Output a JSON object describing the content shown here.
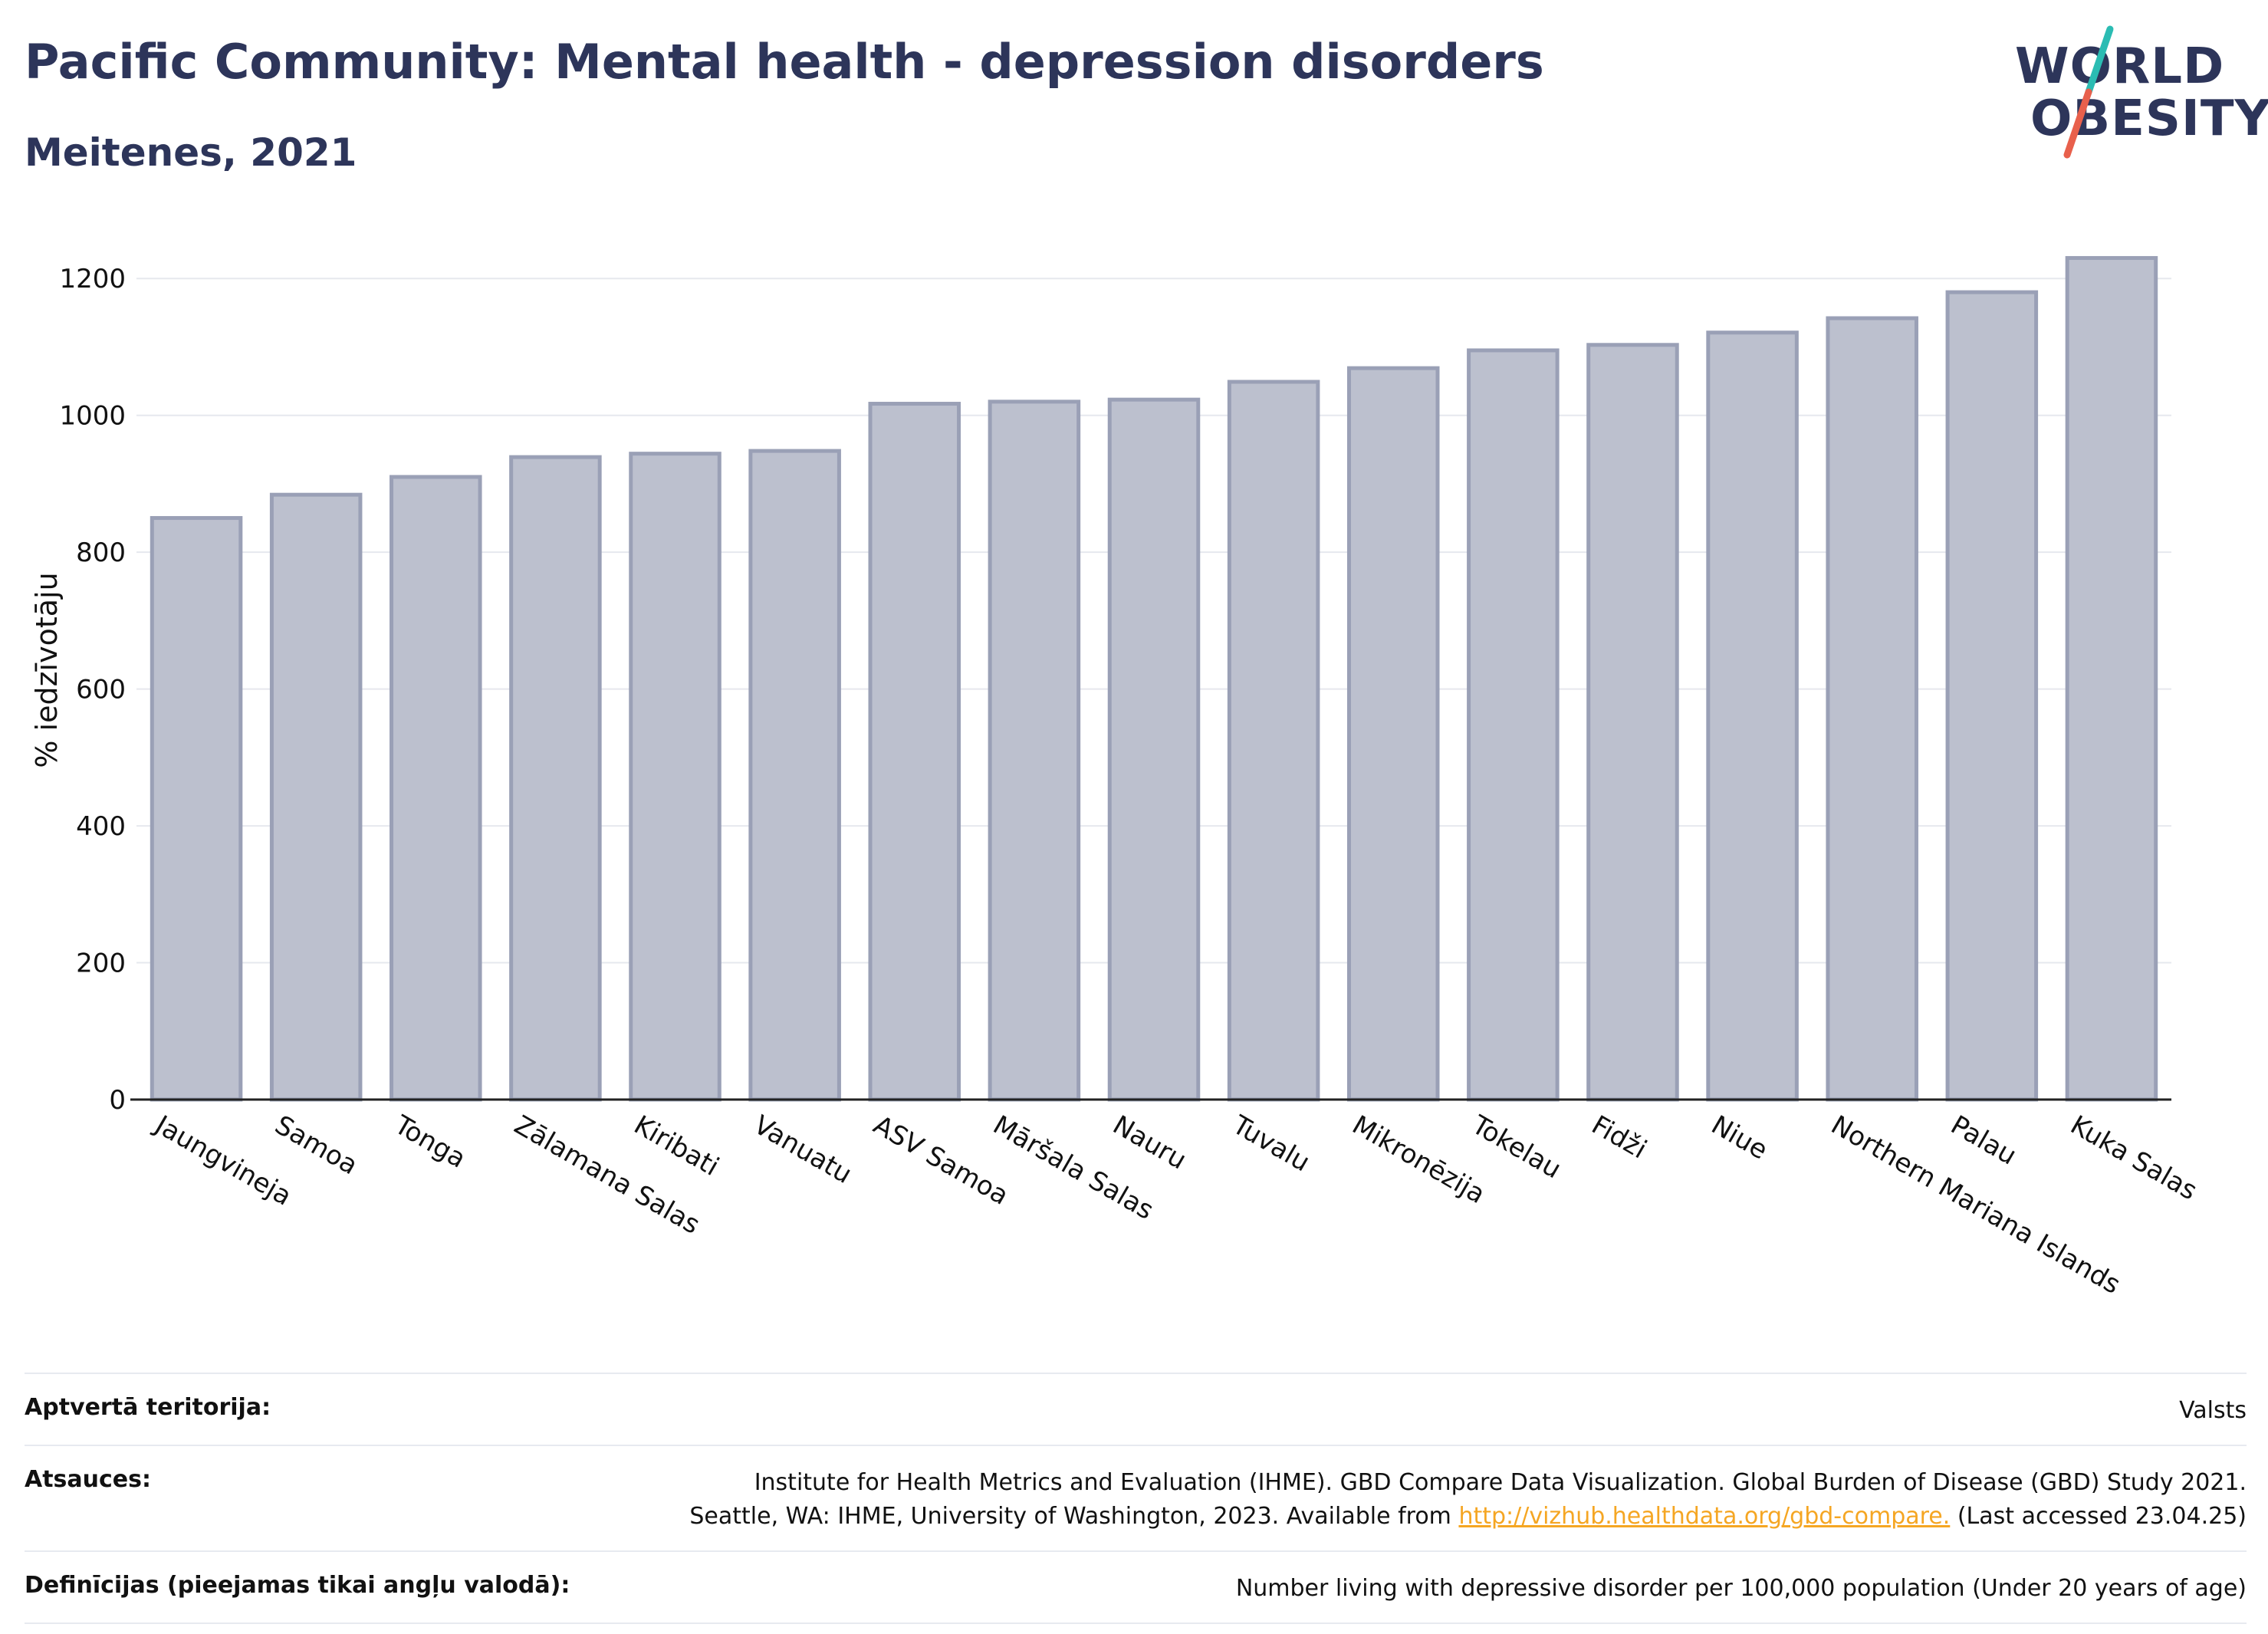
{
  "header": {
    "title": "Pacific Community: Mental health - depression disorders",
    "subtitle": "Meitenes, 2021"
  },
  "logo": {
    "line1": "WORLD",
    "line2": "OBESITY",
    "accent_colors": [
      "#2bbcb3",
      "#e8604c"
    ]
  },
  "chart_data": {
    "type": "bar",
    "categories": [
      "Jaungvineja",
      "Samoa",
      "Tonga",
      "Zālamana Salas",
      "Kiribati",
      "Vanuatu",
      "ASV Samoa",
      "Māršala Salas",
      "Nauru",
      "Tuvalu",
      "Mikronēzija",
      "Tokelau",
      "Fidži",
      "Niue",
      "Northern Mariana Islands",
      "Palau",
      "Kuka Salas"
    ],
    "values": [
      850,
      884,
      910,
      939,
      944,
      948,
      1017,
      1020,
      1023,
      1049,
      1069,
      1095,
      1103,
      1121,
      1142,
      1180,
      1230
    ],
    "ylabel": "% iedzīvotāju",
    "xlabel": "",
    "ylim": [
      0,
      1300
    ],
    "yticks": [
      0,
      200,
      400,
      600,
      800,
      1000,
      1200
    ],
    "grid": true,
    "bar_fill": "#bcc0ce",
    "bar_stroke": "#9aa0b6",
    "axis_color": "#222222"
  },
  "footer": {
    "coverage_label": "Aptvertā teritorija:",
    "coverage_value": "Valsts",
    "sources_label": "Atsauces:",
    "sources_line1": "Institute for Health Metrics and Evaluation (IHME). GBD Compare Data Visualization. Global Burden of Disease (GBD) Study 2021.",
    "sources_line2_pre": "Seattle, WA: IHME, University of Washington, 2023. Available from ",
    "sources_link": "http://vizhub.healthdata.org/gbd-compare.",
    "sources_line2_post": " (Last accessed 23.04.25)",
    "definitions_label": "Definīcijas (pieejamas tikai angļu valodā):",
    "definitions_value": "Number living with depressive disorder per 100,000 population (Under 20 years of age)"
  }
}
